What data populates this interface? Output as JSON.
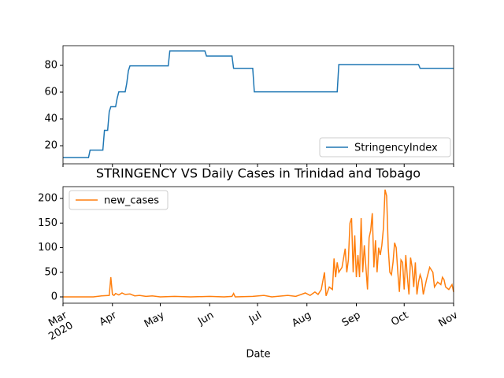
{
  "chart_data": [
    {
      "type": "line",
      "legend": "lower right",
      "xlim": [
        "2020-03-01",
        "2020-11-01"
      ],
      "ylim": [
        6.5,
        94.7
      ],
      "yticks": [
        20,
        40,
        60,
        80
      ],
      "xticks": [
        "2020-03-01",
        "2020-04-01",
        "2020-05-01",
        "2020-06-01",
        "2020-07-01",
        "2020-08-01",
        "2020-09-01",
        "2020-10-01",
        "2020-11-01"
      ],
      "series": [
        {
          "name": "StringencyIndex",
          "color": "#1f77b4",
          "x": [
            "2020-03-01",
            "2020-03-17",
            "2020-03-18",
            "2020-03-26",
            "2020-03-27",
            "2020-03-29",
            "2020-03-30",
            "2020-03-31",
            "2020-04-03",
            "2020-04-04",
            "2020-04-05",
            "2020-04-09",
            "2020-04-10",
            "2020-04-11",
            "2020-04-12",
            "2020-05-06",
            "2020-05-07",
            "2020-05-29",
            "2020-05-30",
            "2020-06-15",
            "2020-06-16",
            "2020-06-28",
            "2020-06-29",
            "2020-08-20",
            "2020-08-21",
            "2020-10-10",
            "2020-10-11",
            "2020-11-01"
          ],
          "values": [
            11.1,
            11.1,
            16.7,
            16.7,
            31.5,
            31.5,
            45.4,
            49.1,
            49.1,
            55.6,
            60.2,
            60.2,
            66.7,
            75.9,
            79.6,
            79.6,
            90.7,
            90.7,
            87,
            87,
            77.8,
            77.8,
            60.2,
            60.2,
            80.6,
            80.6,
            77.8,
            77.8
          ]
        }
      ]
    },
    {
      "type": "line",
      "title": "STRINGENCY VS Daily Cases in Trinidad and Tobago",
      "x_label": "Date",
      "legend": "upper left",
      "xlim": [
        "2020-03-01",
        "2020-11-01"
      ],
      "ylim": [
        -12.8,
        224
      ],
      "yticks": [
        0,
        50,
        100,
        150,
        200
      ],
      "xticks": [
        {
          "value": "2020-03-01",
          "label": "Mar\n2020"
        },
        {
          "value": "2020-04-01",
          "label": "Apr"
        },
        {
          "value": "2020-05-01",
          "label": "May"
        },
        {
          "value": "2020-06-01",
          "label": "Jun"
        },
        {
          "value": "2020-07-01",
          "label": "Jul"
        },
        {
          "value": "2020-08-01",
          "label": "Aug"
        },
        {
          "value": "2020-09-01",
          "label": "Sep"
        },
        {
          "value": "2020-10-01",
          "label": "Oct"
        },
        {
          "value": "2020-11-01",
          "label": "Nov"
        }
      ],
      "series": [
        {
          "name": "new_cases",
          "color": "#ff7f0e",
          "x": [
            "2020-03-01",
            "2020-03-20",
            "2020-03-25",
            "2020-03-30",
            "2020-03-31",
            "2020-04-01",
            "2020-04-02",
            "2020-04-03",
            "2020-04-05",
            "2020-04-07",
            "2020-04-09",
            "2020-04-12",
            "2020-04-15",
            "2020-04-18",
            "2020-04-22",
            "2020-04-26",
            "2020-05-01",
            "2020-05-10",
            "2020-05-20",
            "2020-06-01",
            "2020-06-10",
            "2020-06-15",
            "2020-06-16",
            "2020-06-17",
            "2020-06-28",
            "2020-07-05",
            "2020-07-10",
            "2020-07-20",
            "2020-07-25",
            "2020-07-31",
            "2020-08-03",
            "2020-08-06",
            "2020-08-08",
            "2020-08-10",
            "2020-08-12",
            "2020-08-13",
            "2020-08-15",
            "2020-08-17",
            "2020-08-18",
            "2020-08-19",
            "2020-08-20",
            "2020-08-21",
            "2020-08-23",
            "2020-08-25",
            "2020-08-26",
            "2020-08-27",
            "2020-08-28",
            "2020-08-29",
            "2020-08-30",
            "2020-08-31",
            "2020-09-01",
            "2020-09-02",
            "2020-09-03",
            "2020-09-04",
            "2020-09-05",
            "2020-09-06",
            "2020-09-07",
            "2020-09-08",
            "2020-09-09",
            "2020-09-10",
            "2020-09-11",
            "2020-09-12",
            "2020-09-13",
            "2020-09-14",
            "2020-09-15",
            "2020-09-16",
            "2020-09-17",
            "2020-09-18",
            "2020-09-19",
            "2020-09-20",
            "2020-09-21",
            "2020-09-22",
            "2020-09-23",
            "2020-09-24",
            "2020-09-25",
            "2020-09-26",
            "2020-09-27",
            "2020-09-28",
            "2020-09-29",
            "2020-09-30",
            "2020-10-01",
            "2020-10-02",
            "2020-10-03",
            "2020-10-04",
            "2020-10-05",
            "2020-10-06",
            "2020-10-07",
            "2020-10-08",
            "2020-10-09",
            "2020-10-10",
            "2020-10-11",
            "2020-10-12",
            "2020-10-13",
            "2020-10-15",
            "2020-10-17",
            "2020-10-19",
            "2020-10-20",
            "2020-10-22",
            "2020-10-24",
            "2020-10-25",
            "2020-10-26",
            "2020-10-27",
            "2020-10-29",
            "2020-10-31",
            "2020-11-01"
          ],
          "values": [
            0,
            0,
            2,
            3,
            40,
            5,
            3,
            7,
            4,
            8,
            5,
            6,
            2,
            3,
            1,
            2,
            0,
            1,
            0,
            1,
            0,
            1,
            7,
            0,
            1,
            3,
            0,
            3,
            1,
            8,
            3,
            10,
            5,
            15,
            50,
            2,
            20,
            15,
            78,
            40,
            70,
            50,
            60,
            98,
            50,
            75,
            150,
            160,
            50,
            125,
            40,
            85,
            40,
            160,
            50,
            105,
            60,
            15,
            120,
            135,
            170,
            60,
            115,
            50,
            100,
            85,
            105,
            140,
            218,
            205,
            100,
            50,
            45,
            70,
            110,
            100,
            50,
            10,
            75,
            70,
            15,
            85,
            40,
            5,
            80,
            60,
            20,
            70,
            5,
            30,
            45,
            35,
            5,
            35,
            60,
            50,
            20,
            30,
            25,
            40,
            35,
            20,
            15,
            25,
            10
          ]
        }
      ]
    }
  ]
}
